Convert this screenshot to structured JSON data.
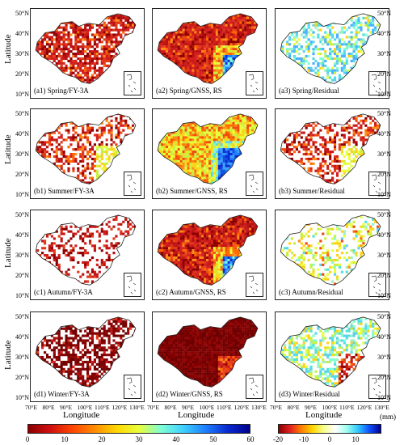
{
  "panels": [
    {
      "label": "(a1) Spring/FY-3A",
      "style": "red_sparse"
    },
    {
      "label": "(a2) Spring/GNSS, RS",
      "style": "red_full_blue_se"
    },
    {
      "label": "(a3) Spring/Residual",
      "style": "cyan_mix"
    },
    {
      "label": "(b1) Summer/FY-3A",
      "style": "red_yellow_sparse"
    },
    {
      "label": "(b2) Summer/GNSS, RS",
      "style": "yellow_blue"
    },
    {
      "label": "(b3) Summer/Residual",
      "style": "red_yellow_sparse"
    },
    {
      "label": "(c1) Autumn/FY-3A",
      "style": "red_very_sparse"
    },
    {
      "label": "(c2) Autumn/GNSS, RS",
      "style": "red_full_blue_se"
    },
    {
      "label": "(c3) Autumn/Residual",
      "style": "yellow_sparse"
    },
    {
      "label": "(d1) Winter/FY-3A",
      "style": "darkred_sparse"
    },
    {
      "label": "(d2) Winter/GNSS, RS",
      "style": "darkred_full"
    },
    {
      "label": "(d3) Winter/Residual",
      "style": "cyan_mix_red_se"
    }
  ],
  "axes": {
    "ylabel": "Latitude",
    "xlabel": "Longitude",
    "lat_ticks": [
      "50°N",
      "40°N",
      "30°N",
      "20°N",
      "10°N"
    ],
    "lon_ticks": [
      "70°E",
      "80°E",
      "90°E",
      "100°E",
      "110°E",
      "120°E",
      "130°E"
    ]
  },
  "colorbar_left": {
    "ticks": [
      "0",
      "10",
      "20",
      "30",
      "40",
      "50",
      "60"
    ]
  },
  "colorbar_right": {
    "ticks": [
      "-20",
      "-10",
      "0",
      "10"
    ],
    "unit": "(mm)"
  }
}
